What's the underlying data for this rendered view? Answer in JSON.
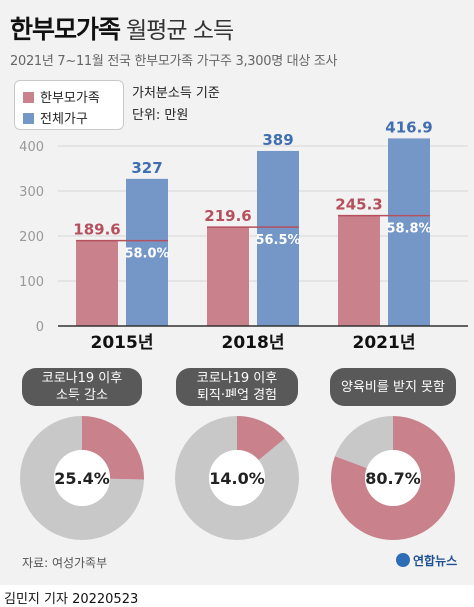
{
  "title": "한부모가족",
  "title_suffix": "월평균 소득",
  "subtitle": "2021년 7~11월 전국 한부모가족 가구주 3,300명 대상 조사",
  "legend": [
    {
      "label": "한부모가족",
      "color": "#c9818b"
    },
    {
      "label": "전체가구",
      "color": "#7497c7"
    }
  ],
  "notes": {
    "basis": "가처분소득 기준",
    "unit": "단위: 만원"
  },
  "chart_data": [
    {
      "type": "bar",
      "categories": [
        "2015년",
        "2018년",
        "2021년"
      ],
      "series": [
        {
          "name": "한부모가족",
          "values": [
            189.6,
            219.6,
            245.3
          ],
          "labels": [
            "189.6",
            "219.6",
            "245.3"
          ],
          "color": "#c9818b"
        },
        {
          "name": "전체가구",
          "values": [
            327,
            389,
            416.9
          ],
          "labels": [
            "327",
            "389",
            "416.9"
          ],
          "color": "#7497c7"
        }
      ],
      "ratio_labels": [
        "58.0%",
        "56.5%",
        "58.8%"
      ],
      "yticks": [
        0,
        100,
        200,
        300,
        400
      ],
      "ylim": [
        0,
        420
      ],
      "grid": true
    },
    {
      "type": "pie",
      "title": "코로나19 이후\n소득 감소",
      "value": 25.4,
      "label": "25.4%",
      "color": "#c9818b",
      "rest_color": "#c8c8c8"
    },
    {
      "type": "pie",
      "title": "코로나19 이후\n퇴직·폐업 경험",
      "value": 14.0,
      "label": "14.0%",
      "color": "#c9818b",
      "rest_color": "#c8c8c8"
    },
    {
      "type": "pie",
      "title": "양육비를 받지 못함",
      "value": 80.7,
      "label": "80.7%",
      "color": "#c9818b",
      "rest_color": "#c8c8c8"
    }
  ],
  "source": "자료: 여성가족부",
  "agency": "연합뉴스",
  "reporter": "김민지 기자  20220523"
}
